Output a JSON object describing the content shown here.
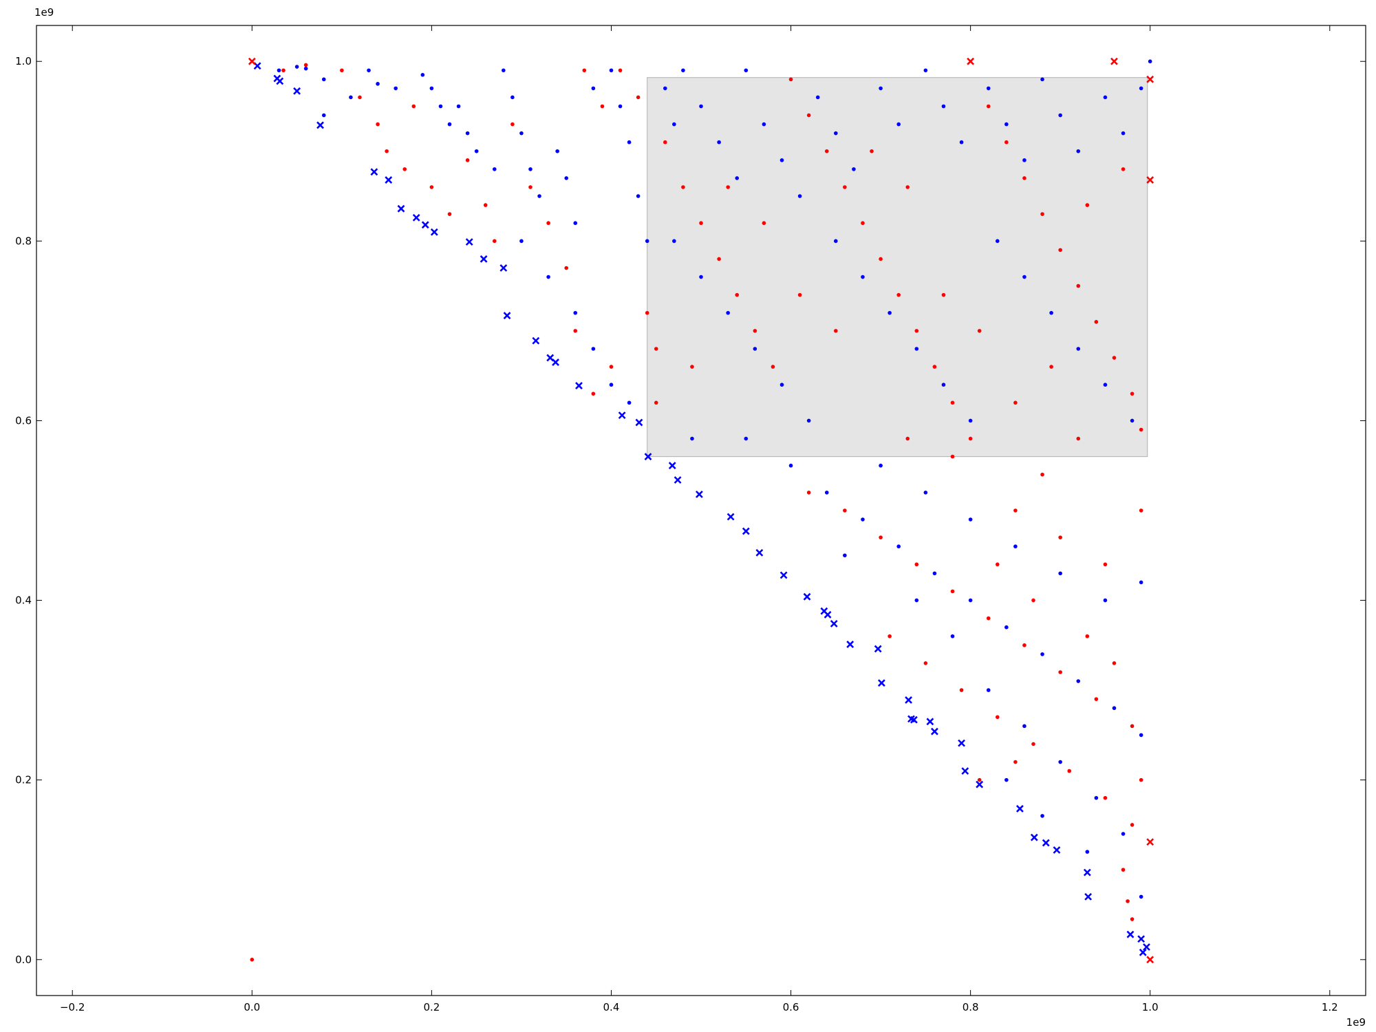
{
  "chart_data": {
    "type": "scatter",
    "title": "",
    "xlabel": "",
    "ylabel": "",
    "xlim": [
      -0.24,
      1.24
    ],
    "ylim": [
      -0.04,
      1.04
    ],
    "x_offset_label": "1e9",
    "y_offset_label": "1e9",
    "x_ticks": [
      -0.2,
      0.0,
      0.2,
      0.4,
      0.6,
      0.8,
      1.0,
      1.2
    ],
    "x_tick_labels": [
      "−0.2",
      "0.0",
      "0.2",
      "0.4",
      "0.6",
      "0.8",
      "1.0",
      "1.2"
    ],
    "y_ticks": [
      0.0,
      0.2,
      0.4,
      0.6,
      0.8,
      1.0
    ],
    "y_tick_labels": [
      "0.0",
      "0.2",
      "0.4",
      "0.6",
      "0.8",
      "1.0"
    ],
    "grid": false,
    "highlight_region": {
      "x": [
        0.44,
        0.997
      ],
      "y": [
        0.56,
        0.982
      ],
      "color": "#e5e5e5",
      "edge_color": "#b0b0b0"
    },
    "colors": {
      "series_a": "#0000ff",
      "series_b": "#ff0000"
    },
    "series": [
      {
        "marker": "x",
        "color": "#0000ff",
        "points": [
          [
            0.006,
            0.995
          ],
          [
            0.028,
            0.981
          ],
          [
            0.031,
            0.978
          ],
          [
            0.05,
            0.967
          ],
          [
            0.076,
            0.929
          ],
          [
            0.136,
            0.877
          ],
          [
            0.152,
            0.868
          ],
          [
            0.166,
            0.836
          ],
          [
            0.183,
            0.826
          ],
          [
            0.193,
            0.818
          ],
          [
            0.203,
            0.81
          ],
          [
            0.242,
            0.799
          ],
          [
            0.258,
            0.78
          ],
          [
            0.28,
            0.77
          ],
          [
            0.284,
            0.717
          ],
          [
            0.316,
            0.689
          ],
          [
            0.332,
            0.67
          ],
          [
            0.338,
            0.665
          ],
          [
            0.364,
            0.639
          ],
          [
            0.412,
            0.606
          ],
          [
            0.431,
            0.598
          ],
          [
            0.441,
            0.56
          ],
          [
            0.468,
            0.55
          ],
          [
            0.474,
            0.534
          ],
          [
            0.498,
            0.518
          ],
          [
            0.533,
            0.493
          ],
          [
            0.55,
            0.477
          ],
          [
            0.565,
            0.453
          ],
          [
            0.592,
            0.428
          ],
          [
            0.618,
            0.404
          ],
          [
            0.637,
            0.388
          ],
          [
            0.641,
            0.384
          ],
          [
            0.648,
            0.374
          ],
          [
            0.666,
            0.351
          ],
          [
            0.697,
            0.346
          ],
          [
            0.701,
            0.308
          ],
          [
            0.731,
            0.289
          ],
          [
            0.734,
            0.268
          ],
          [
            0.737,
            0.267
          ],
          [
            0.755,
            0.265
          ],
          [
            0.76,
            0.254
          ],
          [
            0.79,
            0.241
          ],
          [
            0.794,
            0.21
          ],
          [
            0.81,
            0.195
          ],
          [
            0.855,
            0.168
          ],
          [
            0.871,
            0.136
          ],
          [
            0.884,
            0.13
          ],
          [
            0.896,
            0.122
          ],
          [
            0.93,
            0.097
          ],
          [
            0.931,
            0.07
          ],
          [
            0.978,
            0.028
          ],
          [
            0.99,
            0.023
          ],
          [
            0.992,
            0.008
          ],
          [
            0.996,
            0.014
          ]
        ]
      },
      {
        "marker": "x",
        "color": "#ff0000",
        "points": [
          [
            0.0,
            1.0
          ],
          [
            0.8,
            1.0
          ],
          [
            0.96,
            1.0
          ],
          [
            1.0,
            0.98
          ],
          [
            1.0,
            0.868
          ],
          [
            1.0,
            0.131
          ],
          [
            1.0,
            0.0
          ]
        ]
      },
      {
        "marker": "dot",
        "color": "#0000ff",
        "points": [
          [
            0.03,
            0.99
          ],
          [
            0.05,
            0.994
          ],
          [
            0.06,
            0.992
          ],
          [
            0.08,
            0.98
          ],
          [
            0.08,
            0.94
          ],
          [
            0.11,
            0.96
          ],
          [
            0.13,
            0.99
          ],
          [
            0.14,
            0.975
          ],
          [
            0.16,
            0.97
          ],
          [
            0.19,
            0.985
          ],
          [
            0.2,
            0.97
          ],
          [
            0.21,
            0.95
          ],
          [
            0.22,
            0.93
          ],
          [
            0.24,
            0.92
          ],
          [
            0.23,
            0.95
          ],
          [
            0.25,
            0.9
          ],
          [
            0.27,
            0.88
          ],
          [
            0.28,
            0.99
          ],
          [
            0.29,
            0.96
          ],
          [
            0.3,
            0.92
          ],
          [
            0.31,
            0.88
          ],
          [
            0.32,
            0.85
          ],
          [
            0.34,
            0.9
          ],
          [
            0.35,
            0.87
          ],
          [
            0.36,
            0.82
          ],
          [
            0.38,
            0.97
          ],
          [
            0.4,
            0.99
          ],
          [
            0.41,
            0.95
          ],
          [
            0.42,
            0.91
          ],
          [
            0.43,
            0.85
          ],
          [
            0.44,
            0.8
          ],
          [
            0.46,
            0.97
          ],
          [
            0.47,
            0.93
          ],
          [
            0.48,
            0.99
          ],
          [
            0.5,
            0.95
          ],
          [
            0.52,
            0.91
          ],
          [
            0.54,
            0.87
          ],
          [
            0.55,
            0.99
          ],
          [
            0.57,
            0.93
          ],
          [
            0.59,
            0.89
          ],
          [
            0.61,
            0.85
          ],
          [
            0.63,
            0.96
          ],
          [
            0.65,
            0.92
          ],
          [
            0.67,
            0.88
          ],
          [
            0.7,
            0.97
          ],
          [
            0.72,
            0.93
          ],
          [
            0.75,
            0.99
          ],
          [
            0.77,
            0.95
          ],
          [
            0.79,
            0.91
          ],
          [
            0.82,
            0.97
          ],
          [
            0.84,
            0.93
          ],
          [
            0.86,
            0.89
          ],
          [
            0.88,
            0.98
          ],
          [
            0.9,
            0.94
          ],
          [
            0.92,
            0.9
          ],
          [
            0.95,
            0.96
          ],
          [
            0.97,
            0.92
          ],
          [
            0.99,
            0.97
          ],
          [
            1.0,
            1.0
          ],
          [
            0.3,
            0.8
          ],
          [
            0.33,
            0.76
          ],
          [
            0.36,
            0.72
          ],
          [
            0.38,
            0.68
          ],
          [
            0.4,
            0.64
          ],
          [
            0.42,
            0.62
          ],
          [
            0.47,
            0.8
          ],
          [
            0.5,
            0.76
          ],
          [
            0.53,
            0.72
          ],
          [
            0.56,
            0.68
          ],
          [
            0.59,
            0.64
          ],
          [
            0.62,
            0.6
          ],
          [
            0.65,
            0.8
          ],
          [
            0.68,
            0.76
          ],
          [
            0.71,
            0.72
          ],
          [
            0.74,
            0.68
          ],
          [
            0.77,
            0.64
          ],
          [
            0.8,
            0.6
          ],
          [
            0.83,
            0.8
          ],
          [
            0.86,
            0.76
          ],
          [
            0.89,
            0.72
          ],
          [
            0.92,
            0.68
          ],
          [
            0.95,
            0.64
          ],
          [
            0.98,
            0.6
          ],
          [
            0.49,
            0.58
          ],
          [
            0.55,
            0.58
          ],
          [
            0.6,
            0.55
          ],
          [
            0.64,
            0.52
          ],
          [
            0.68,
            0.49
          ],
          [
            0.72,
            0.46
          ],
          [
            0.76,
            0.43
          ],
          [
            0.8,
            0.4
          ],
          [
            0.84,
            0.37
          ],
          [
            0.88,
            0.34
          ],
          [
            0.92,
            0.31
          ],
          [
            0.96,
            0.28
          ],
          [
            0.99,
            0.25
          ],
          [
            0.7,
            0.55
          ],
          [
            0.75,
            0.52
          ],
          [
            0.8,
            0.49
          ],
          [
            0.85,
            0.46
          ],
          [
            0.9,
            0.43
          ],
          [
            0.95,
            0.4
          ],
          [
            0.99,
            0.42
          ],
          [
            0.82,
            0.3
          ],
          [
            0.86,
            0.26
          ],
          [
            0.9,
            0.22
          ],
          [
            0.94,
            0.18
          ],
          [
            0.97,
            0.14
          ],
          [
            0.99,
            0.07
          ],
          [
            0.93,
            0.12
          ],
          [
            0.88,
            0.16
          ],
          [
            0.84,
            0.2
          ],
          [
            0.78,
            0.36
          ],
          [
            0.74,
            0.4
          ],
          [
            0.66,
            0.45
          ]
        ]
      },
      {
        "marker": "dot",
        "color": "#ff0000",
        "points": [
          [
            0.0,
            0.0
          ],
          [
            0.035,
            0.99
          ],
          [
            0.06,
            0.996
          ],
          [
            0.1,
            0.99
          ],
          [
            0.12,
            0.96
          ],
          [
            0.14,
            0.93
          ],
          [
            0.15,
            0.9
          ],
          [
            0.17,
            0.88
          ],
          [
            0.18,
            0.95
          ],
          [
            0.2,
            0.86
          ],
          [
            0.22,
            0.83
          ],
          [
            0.24,
            0.89
          ],
          [
            0.26,
            0.84
          ],
          [
            0.27,
            0.8
          ],
          [
            0.29,
            0.93
          ],
          [
            0.31,
            0.86
          ],
          [
            0.33,
            0.82
          ],
          [
            0.35,
            0.77
          ],
          [
            0.37,
            0.99
          ],
          [
            0.39,
            0.95
          ],
          [
            0.41,
            0.99
          ],
          [
            0.43,
            0.96
          ],
          [
            0.44,
            0.72
          ],
          [
            0.45,
            0.68
          ],
          [
            0.46,
            0.91
          ],
          [
            0.48,
            0.86
          ],
          [
            0.5,
            0.82
          ],
          [
            0.52,
            0.78
          ],
          [
            0.54,
            0.74
          ],
          [
            0.56,
            0.7
          ],
          [
            0.58,
            0.66
          ],
          [
            0.6,
            0.98
          ],
          [
            0.62,
            0.94
          ],
          [
            0.64,
            0.9
          ],
          [
            0.66,
            0.86
          ],
          [
            0.68,
            0.82
          ],
          [
            0.7,
            0.78
          ],
          [
            0.72,
            0.74
          ],
          [
            0.74,
            0.7
          ],
          [
            0.76,
            0.66
          ],
          [
            0.78,
            0.62
          ],
          [
            0.8,
            0.58
          ],
          [
            0.82,
            0.95
          ],
          [
            0.84,
            0.91
          ],
          [
            0.86,
            0.87
          ],
          [
            0.88,
            0.83
          ],
          [
            0.9,
            0.79
          ],
          [
            0.92,
            0.75
          ],
          [
            0.94,
            0.71
          ],
          [
            0.96,
            0.67
          ],
          [
            0.98,
            0.63
          ],
          [
            0.99,
            0.59
          ],
          [
            0.97,
            0.88
          ],
          [
            0.93,
            0.84
          ],
          [
            0.89,
            0.66
          ],
          [
            0.85,
            0.62
          ],
          [
            0.81,
            0.7
          ],
          [
            0.77,
            0.74
          ],
          [
            0.73,
            0.86
          ],
          [
            0.69,
            0.9
          ],
          [
            0.65,
            0.7
          ],
          [
            0.61,
            0.74
          ],
          [
            0.57,
            0.82
          ],
          [
            0.53,
            0.86
          ],
          [
            0.49,
            0.66
          ],
          [
            0.45,
            0.62
          ],
          [
            0.38,
            0.63
          ],
          [
            0.4,
            0.66
          ],
          [
            0.36,
            0.7
          ],
          [
            0.62,
            0.52
          ],
          [
            0.66,
            0.5
          ],
          [
            0.7,
            0.47
          ],
          [
            0.74,
            0.44
          ],
          [
            0.78,
            0.41
          ],
          [
            0.82,
            0.38
          ],
          [
            0.86,
            0.35
          ],
          [
            0.9,
            0.32
          ],
          [
            0.94,
            0.29
          ],
          [
            0.98,
            0.26
          ],
          [
            0.71,
            0.36
          ],
          [
            0.75,
            0.33
          ],
          [
            0.79,
            0.3
          ],
          [
            0.83,
            0.27
          ],
          [
            0.87,
            0.24
          ],
          [
            0.91,
            0.21
          ],
          [
            0.95,
            0.18
          ],
          [
            0.98,
            0.15
          ],
          [
            0.85,
            0.5
          ],
          [
            0.9,
            0.47
          ],
          [
            0.95,
            0.44
          ],
          [
            0.99,
            0.5
          ],
          [
            0.88,
            0.54
          ],
          [
            0.92,
            0.58
          ],
          [
            0.78,
            0.56
          ],
          [
            0.73,
            0.58
          ],
          [
            0.83,
            0.44
          ],
          [
            0.87,
            0.4
          ],
          [
            0.93,
            0.36
          ],
          [
            0.96,
            0.33
          ],
          [
            0.99,
            0.2
          ],
          [
            0.97,
            0.1
          ],
          [
            0.975,
            0.065
          ],
          [
            0.98,
            0.045
          ],
          [
            0.81,
            0.2
          ],
          [
            0.85,
            0.22
          ]
        ]
      }
    ]
  }
}
